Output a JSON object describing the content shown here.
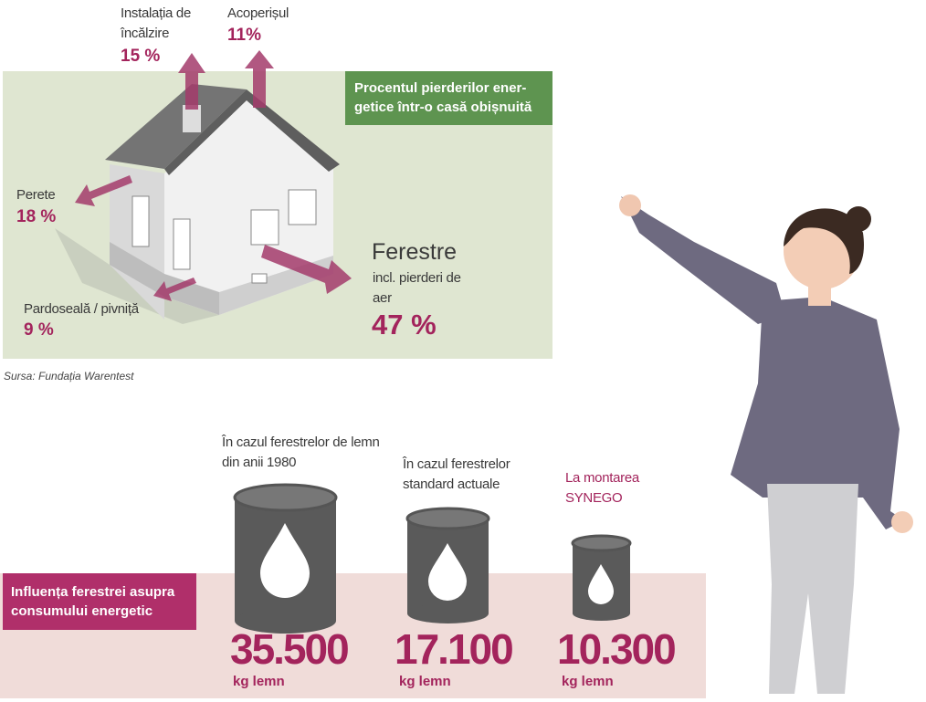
{
  "losses": {
    "title_lines": [
      "Procentul pierderilor ener-",
      "getice într-o casă obișnuită"
    ],
    "items": [
      {
        "label": "Instalația de încălzire",
        "value_label": "15 %"
      },
      {
        "label": "Acoperișul",
        "value_label": "11%"
      },
      {
        "label": "Perete",
        "value_label": "18 %"
      },
      {
        "label": "Pardoseală / pivniță",
        "value_label": "9 %"
      },
      {
        "label": "Ferestre",
        "sublabel": "incl. pierderi de aer",
        "value_label": "47 %"
      }
    ],
    "source": "Sursa: Fundația Warentest"
  },
  "consumption": {
    "title": "Influența ferestrei asupra consumului energetic",
    "items": [
      {
        "label": "În cazul ferestrelor de lemn din anii 1980",
        "value_label": "35.500",
        "unit": "kg lemn"
      },
      {
        "label": "În cazul ferestrelor standard actuale",
        "value_label": "17.100",
        "unit": "kg lemn"
      },
      {
        "label": "La montarea SYNEGO",
        "value_label": "10.300",
        "unit": "kg lemn"
      }
    ]
  }
}
